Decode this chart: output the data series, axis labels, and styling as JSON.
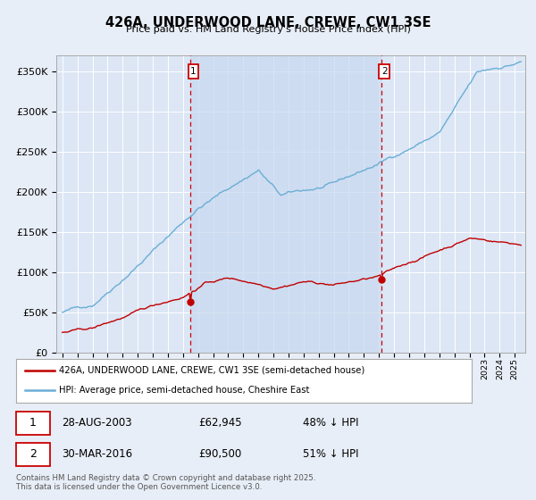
{
  "title": "426A, UNDERWOOD LANE, CREWE, CW1 3SE",
  "subtitle": "Price paid vs. HM Land Registry's House Price Index (HPI)",
  "background_color": "#e8eef7",
  "plot_bg_color": "#dce6f5",
  "grid_color": "#ffffff",
  "hpi_color": "#6aaed6",
  "price_color": "#c00000",
  "vline_color": "#cc0000",
  "shade_color": "#c8d8ef",
  "sale1_date": "28-AUG-2003",
  "sale1_price": 62945,
  "sale1_pct": "48% ↓ HPI",
  "sale2_date": "30-MAR-2016",
  "sale2_price": 90500,
  "sale2_pct": "51% ↓ HPI",
  "legend_label1": "426A, UNDERWOOD LANE, CREWE, CW1 3SE (semi-detached house)",
  "legend_label2": "HPI: Average price, semi-detached house, Cheshire East",
  "footer": "Contains HM Land Registry data © Crown copyright and database right 2025.\nThis data is licensed under the Open Government Licence v3.0.",
  "ylim_max": 370000,
  "yticks": [
    0,
    50000,
    100000,
    150000,
    200000,
    250000,
    300000,
    350000
  ],
  "year_start": 1995,
  "year_end": 2025
}
